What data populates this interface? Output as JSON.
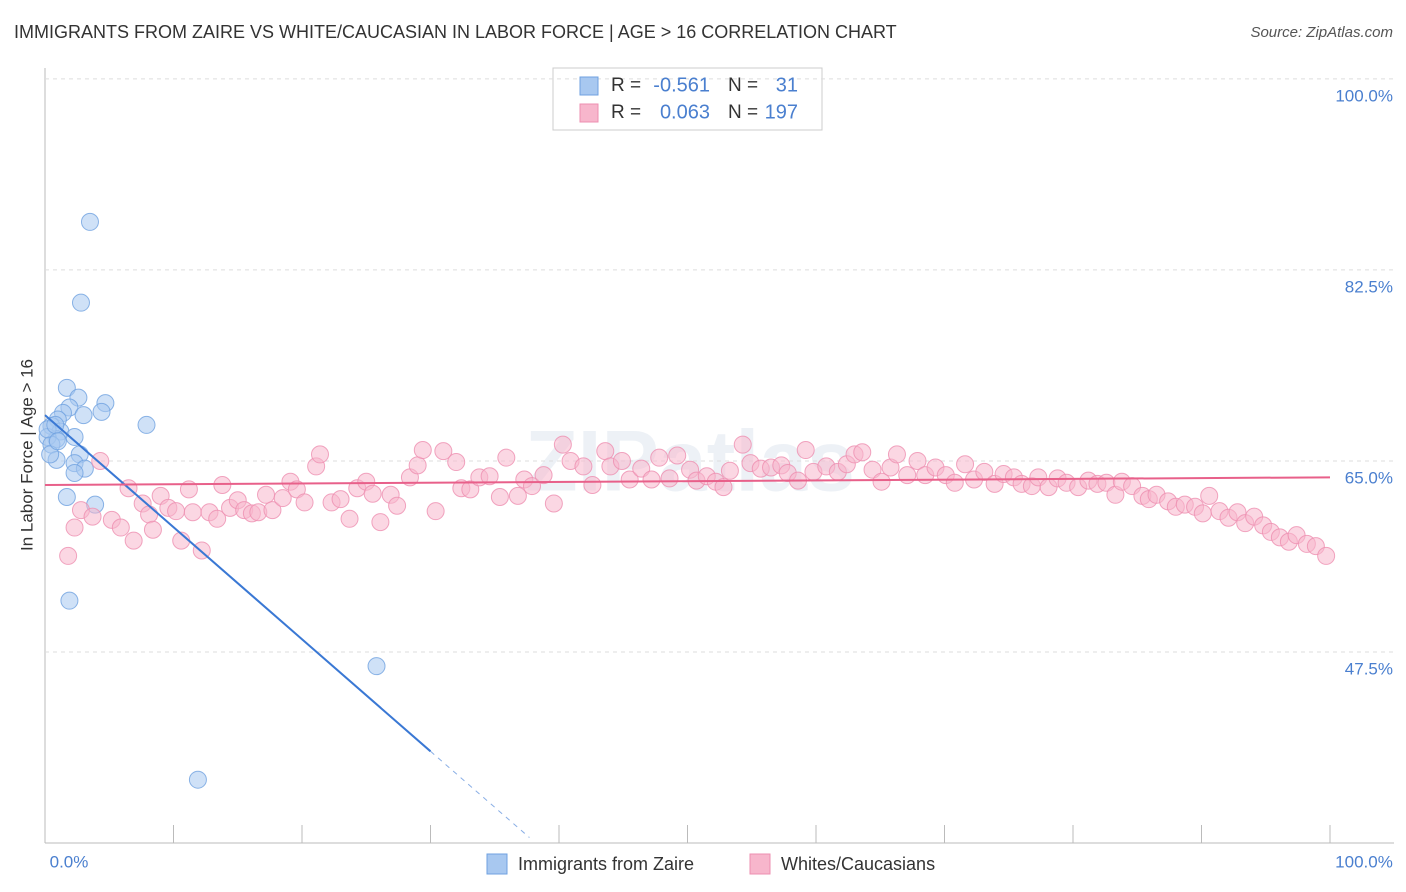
{
  "chart_data": {
    "type": "scatter",
    "title": "IMMIGRANTS FROM ZAIRE VS WHITE/CAUCASIAN IN LABOR FORCE | AGE > 16 CORRELATION CHART",
    "source": "Source: ZipAtlas.com",
    "y_label": "In Labor Force | Age > 16",
    "watermark": "ZIPatlas",
    "xlim": [
      0,
      100
    ],
    "ylim": [
      30,
      101
    ],
    "xticks": [
      {
        "value": 0,
        "label": "0.0%"
      },
      {
        "value": 100,
        "label": "100.0%"
      }
    ],
    "x_minor_ticks": [
      10,
      20,
      30,
      40,
      50,
      60,
      70,
      80,
      90
    ],
    "yticks": [
      {
        "value": 47.5,
        "label": "47.5%"
      },
      {
        "value": 65,
        "label": "65.0%"
      },
      {
        "value": 82.5,
        "label": "82.5%"
      },
      {
        "value": 100,
        "label": "100.0%"
      }
    ],
    "grid": true,
    "series": [
      {
        "name": "Immigrants from Zaire",
        "color": "#6fa1e0",
        "r_label": "R =",
        "r": "-0.561",
        "n_label": "N =",
        "n": "31",
        "trend": {
          "x": [
            0,
            30,
            37.7
          ],
          "y": [
            69.2,
            38.4,
            30.5
          ],
          "color": "#3a78d4"
        },
        "x": [
          3.5,
          2.8,
          1.7,
          2.6,
          4.7,
          1.9,
          1.4,
          3.0,
          4.4,
          1.0,
          7.9,
          0.5,
          1.2,
          2.3,
          0.9,
          0.2,
          0.5,
          2.7,
          0.9,
          2.3,
          3.1,
          2.3,
          1.7,
          3.9,
          1.9,
          25.8,
          11.9,
          0.2,
          0.8,
          0.4,
          1.0
        ],
        "values": [
          86.9,
          79.5,
          71.7,
          70.8,
          70.3,
          69.9,
          69.4,
          69.2,
          69.5,
          68.8,
          68.3,
          68.2,
          67.7,
          67.2,
          67.0,
          67.2,
          66.5,
          65.6,
          65.1,
          64.8,
          64.3,
          63.9,
          61.7,
          61.0,
          52.2,
          46.2,
          35.8,
          67.9,
          68.3,
          65.6,
          66.8
        ]
      },
      {
        "name": "Whites/Caucasians",
        "color": "#ee8fb0",
        "r_label": "R =",
        "r": "0.063",
        "n_label": "N =",
        "n": "197",
        "trend": {
          "x": [
            0,
            100
          ],
          "y": [
            62.8,
            63.5
          ],
          "color": "#e8608a"
        },
        "x": [
          1.8,
          2.3,
          2.8,
          3.7,
          4.3,
          5.2,
          5.9,
          6.5,
          6.9,
          7.6,
          8.1,
          8.4,
          9.0,
          9.6,
          10.2,
          10.6,
          11.2,
          11.5,
          12.2,
          12.8,
          13.4,
          13.8,
          14.4,
          15.0,
          15.5,
          16.1,
          16.6,
          17.2,
          17.7,
          18.5,
          19.1,
          19.6,
          20.2,
          21.1,
          21.4,
          22.3,
          23.0,
          23.7,
          24.3,
          25.0,
          25.5,
          26.1,
          26.9,
          27.4,
          28.4,
          29.0,
          29.4,
          30.4,
          31.0,
          32.0,
          32.4,
          33.1,
          33.8,
          34.6,
          35.4,
          35.9,
          36.8,
          37.3,
          37.9,
          38.8,
          39.6,
          40.3,
          40.9,
          41.9,
          42.6,
          43.6,
          44.0,
          44.9,
          45.5,
          46.4,
          47.2,
          47.8,
          48.6,
          49.2,
          50.2,
          50.7,
          51.5,
          52.2,
          52.8,
          53.3,
          54.3,
          54.9,
          55.7,
          56.5,
          57.3,
          57.8,
          58.6,
          59.2,
          59.8,
          60.8,
          61.7,
          62.4,
          63.0,
          63.6,
          64.4,
          65.1,
          65.8,
          66.3,
          67.1,
          67.9,
          68.5,
          69.3,
          70.1,
          70.8,
          71.6,
          72.3,
          73.1,
          73.9,
          74.6,
          75.4,
          76.0,
          76.8,
          77.3,
          78.1,
          78.8,
          79.5,
          80.4,
          81.2,
          81.9,
          82.6,
          83.3,
          83.8,
          84.6,
          85.4,
          85.9,
          86.5,
          87.4,
          88.0,
          88.7,
          89.5,
          90.1,
          90.6,
          91.4,
          92.1,
          92.8,
          93.4,
          94.1,
          94.8,
          95.4,
          96.1,
          96.8,
          97.4,
          98.2,
          98.9,
          99.7
        ],
        "values": [
          56.3,
          58.9,
          60.5,
          59.9,
          65.0,
          59.6,
          58.9,
          62.5,
          57.7,
          61.1,
          60.1,
          58.7,
          61.8,
          60.7,
          60.4,
          57.7,
          62.4,
          60.3,
          56.8,
          60.3,
          59.7,
          62.8,
          60.7,
          61.4,
          60.5,
          60.2,
          60.3,
          61.9,
          60.5,
          61.6,
          63.1,
          62.4,
          61.2,
          64.5,
          65.6,
          61.2,
          61.5,
          59.7,
          62.5,
          63.1,
          62.0,
          59.4,
          61.9,
          60.9,
          63.5,
          64.6,
          66.0,
          60.4,
          65.9,
          64.9,
          62.5,
          62.4,
          63.5,
          63.6,
          61.7,
          65.3,
          61.8,
          63.3,
          62.7,
          63.7,
          61.1,
          66.5,
          65.0,
          64.5,
          62.8,
          65.9,
          64.5,
          65.0,
          63.3,
          64.3,
          63.3,
          65.3,
          63.4,
          65.5,
          64.2,
          63.2,
          63.6,
          63.1,
          62.6,
          64.1,
          66.5,
          64.8,
          64.3,
          64.4,
          64.6,
          63.9,
          63.2,
          66.0,
          64.0,
          64.5,
          64.0,
          64.7,
          65.6,
          65.8,
          64.2,
          63.1,
          64.4,
          65.6,
          63.7,
          65.0,
          63.7,
          64.4,
          63.7,
          63.0,
          64.7,
          63.3,
          64.0,
          62.9,
          63.8,
          63.5,
          62.9,
          62.7,
          63.5,
          62.6,
          63.4,
          63.0,
          62.6,
          63.2,
          62.9,
          63.0,
          61.9,
          63.1,
          62.7,
          61.8,
          61.5,
          61.9,
          61.3,
          60.8,
          61.0,
          60.8,
          60.2,
          61.8,
          60.4,
          59.8,
          60.3,
          59.3,
          59.9,
          59.1,
          58.5,
          58.0,
          57.6,
          58.2,
          57.4,
          57.2,
          56.3
        ]
      }
    ]
  }
}
